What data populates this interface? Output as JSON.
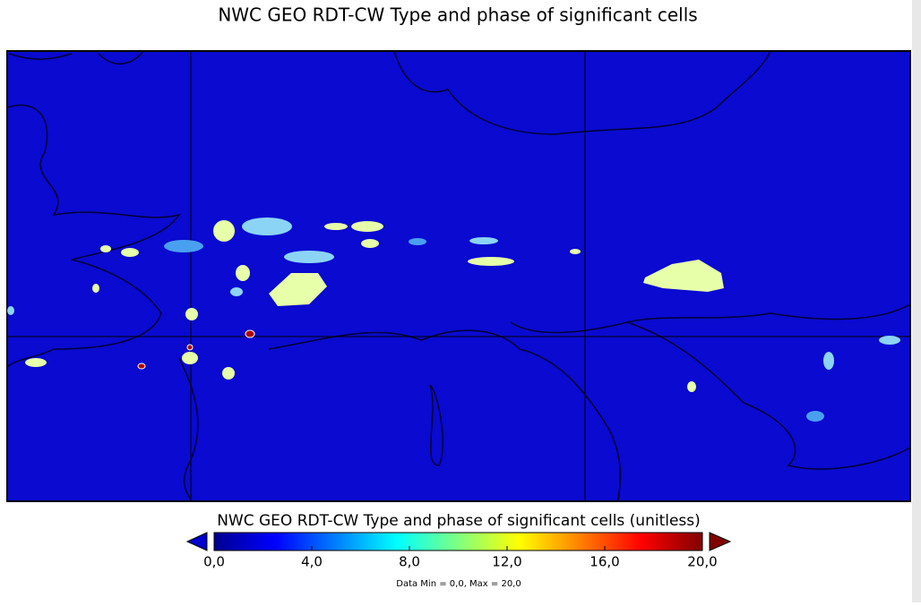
{
  "title": "NWC GEO RDT-CW Type and phase of significant cells",
  "colorbar": {
    "label": "NWC GEO RDT-CW Type and phase of significant cells (unitless)",
    "lim": [
      0,
      20
    ],
    "ticks": [
      {
        "value": 0,
        "label": "0,0"
      },
      {
        "value": 4,
        "label": "4,0"
      },
      {
        "value": 8,
        "label": "8,0"
      },
      {
        "value": 12,
        "label": "12,0"
      },
      {
        "value": 16,
        "label": "16,0"
      },
      {
        "value": 20,
        "label": "20,0"
      }
    ],
    "colors": [
      "#00008f",
      "#0000ff",
      "#0080ff",
      "#00ffff",
      "#80ff80",
      "#ffff00",
      "#ff8000",
      "#ff0000",
      "#800000"
    ],
    "under_color": "#0000cc",
    "over_color": "#800000"
  },
  "note": "Data Min = 0,0, Max = 20,0"
}
